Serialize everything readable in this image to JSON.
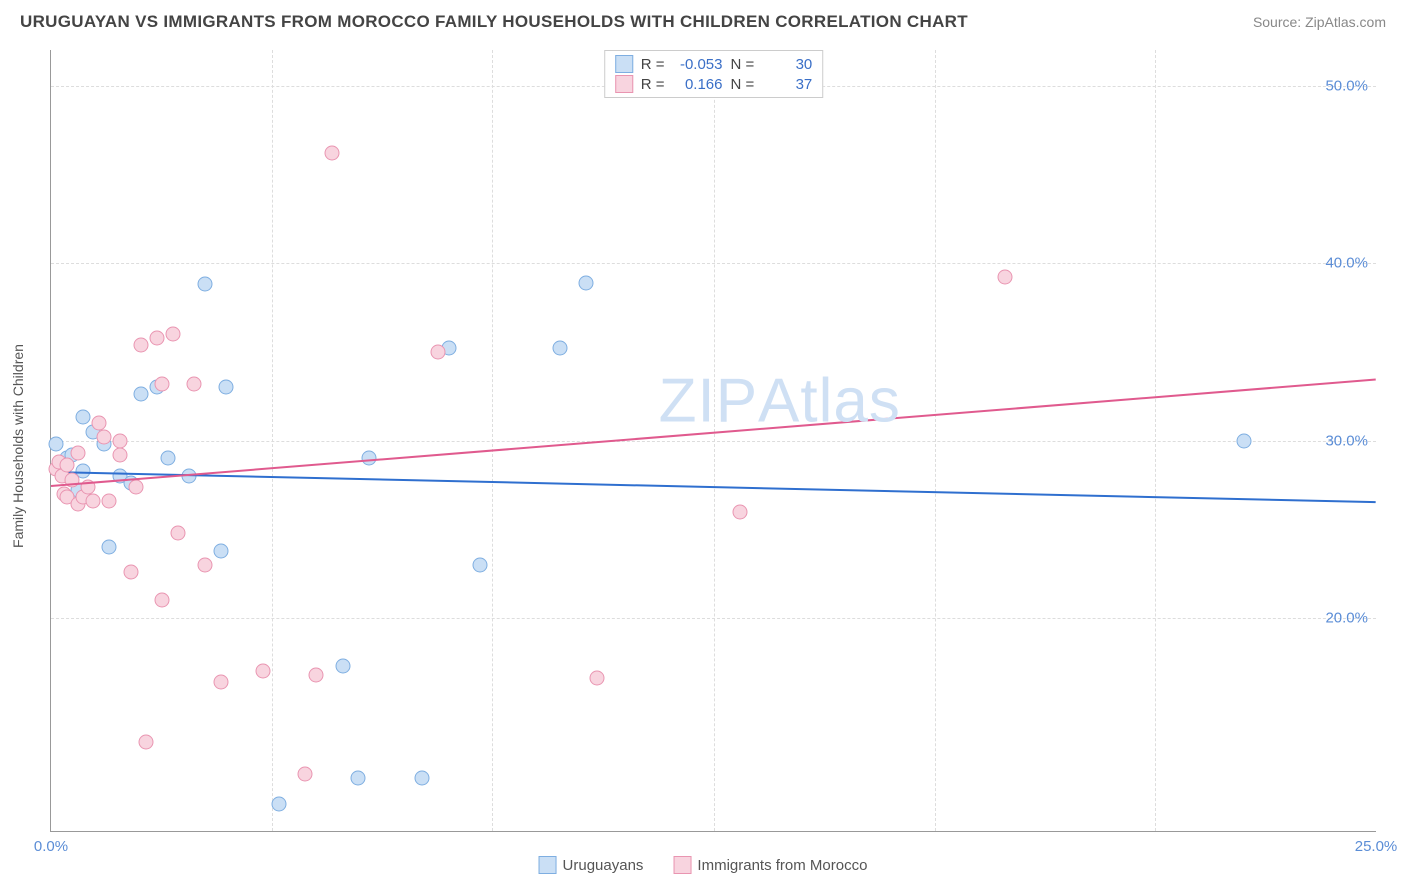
{
  "header": {
    "title": "URUGUAYAN VS IMMIGRANTS FROM MOROCCO FAMILY HOUSEHOLDS WITH CHILDREN CORRELATION CHART",
    "source": "Source: ZipAtlas.com"
  },
  "watermark": {
    "part1": "ZIP",
    "part2": "Atlas"
  },
  "chart": {
    "type": "scatter",
    "ylabel": "Family Households with Children",
    "xlim": [
      0,
      25
    ],
    "ylim": [
      8,
      52
    ],
    "y_ticks": [
      20,
      30,
      40,
      50
    ],
    "y_tick_labels": [
      "20.0%",
      "30.0%",
      "40.0%",
      "50.0%"
    ],
    "x_ticks": [
      0,
      25
    ],
    "x_tick_labels": [
      "0.0%",
      "25.0%"
    ],
    "x_minor_ticks": [
      4.17,
      8.33,
      12.5,
      16.67,
      20.83
    ],
    "grid_color": "#dddddd",
    "background_color": "#ffffff",
    "series": [
      {
        "name": "Uruguayans",
        "color_fill": "#cadff5",
        "color_stroke": "#7eaee1",
        "marker_size": 15,
        "r_value": "-0.053",
        "n_value": "30",
        "trend": {
          "y_at_xmin": 28.3,
          "y_at_xmax": 26.6,
          "color": "#2f6fcf",
          "width": 2
        },
        "points": [
          {
            "x": 0.1,
            "y": 29.8
          },
          {
            "x": 0.15,
            "y": 28.6
          },
          {
            "x": 0.2,
            "y": 28.8
          },
          {
            "x": 0.3,
            "y": 29.0
          },
          {
            "x": 0.4,
            "y": 29.2
          },
          {
            "x": 0.5,
            "y": 27.2
          },
          {
            "x": 0.6,
            "y": 31.3
          },
          {
            "x": 0.6,
            "y": 28.3
          },
          {
            "x": 0.8,
            "y": 30.5
          },
          {
            "x": 1.0,
            "y": 29.8
          },
          {
            "x": 1.1,
            "y": 24.0
          },
          {
            "x": 1.3,
            "y": 28.0
          },
          {
            "x": 1.5,
            "y": 27.6
          },
          {
            "x": 1.7,
            "y": 32.6
          },
          {
            "x": 2.0,
            "y": 33.0
          },
          {
            "x": 2.2,
            "y": 29.0
          },
          {
            "x": 2.6,
            "y": 28.0
          },
          {
            "x": 2.9,
            "y": 38.8
          },
          {
            "x": 3.2,
            "y": 23.8
          },
          {
            "x": 3.3,
            "y": 33.0
          },
          {
            "x": 4.3,
            "y": 9.5
          },
          {
            "x": 5.5,
            "y": 17.3
          },
          {
            "x": 5.8,
            "y": 11.0
          },
          {
            "x": 6.0,
            "y": 29.0
          },
          {
            "x": 7.0,
            "y": 11.0
          },
          {
            "x": 7.5,
            "y": 35.2
          },
          {
            "x": 8.1,
            "y": 23.0
          },
          {
            "x": 9.6,
            "y": 35.2
          },
          {
            "x": 10.1,
            "y": 38.9
          },
          {
            "x": 22.5,
            "y": 30.0
          }
        ]
      },
      {
        "name": "Immigrants from Morocco",
        "color_fill": "#f8d4df",
        "color_stroke": "#e995b1",
        "marker_size": 15,
        "r_value": "0.166",
        "n_value": "37",
        "trend": {
          "y_at_xmin": 27.5,
          "y_at_xmax": 33.5,
          "color": "#e05a8e",
          "width": 2
        },
        "points": [
          {
            "x": 0.1,
            "y": 28.4
          },
          {
            "x": 0.15,
            "y": 28.8
          },
          {
            "x": 0.2,
            "y": 28.0
          },
          {
            "x": 0.25,
            "y": 27.0
          },
          {
            "x": 0.3,
            "y": 28.6
          },
          {
            "x": 0.3,
            "y": 26.8
          },
          {
            "x": 0.4,
            "y": 27.8
          },
          {
            "x": 0.5,
            "y": 29.3
          },
          {
            "x": 0.5,
            "y": 26.4
          },
          {
            "x": 0.6,
            "y": 26.8
          },
          {
            "x": 0.7,
            "y": 27.4
          },
          {
            "x": 0.8,
            "y": 26.6
          },
          {
            "x": 0.9,
            "y": 31.0
          },
          {
            "x": 1.0,
            "y": 30.2
          },
          {
            "x": 1.1,
            "y": 26.6
          },
          {
            "x": 1.3,
            "y": 30.0
          },
          {
            "x": 1.3,
            "y": 29.2
          },
          {
            "x": 1.5,
            "y": 22.6
          },
          {
            "x": 1.6,
            "y": 27.4
          },
          {
            "x": 1.7,
            "y": 35.4
          },
          {
            "x": 1.8,
            "y": 13.0
          },
          {
            "x": 2.0,
            "y": 35.8
          },
          {
            "x": 2.1,
            "y": 33.2
          },
          {
            "x": 2.1,
            "y": 21.0
          },
          {
            "x": 2.3,
            "y": 36.0
          },
          {
            "x": 2.4,
            "y": 24.8
          },
          {
            "x": 2.7,
            "y": 33.2
          },
          {
            "x": 2.9,
            "y": 23.0
          },
          {
            "x": 3.2,
            "y": 16.4
          },
          {
            "x": 4.0,
            "y": 17.0
          },
          {
            "x": 4.8,
            "y": 11.2
          },
          {
            "x": 5.0,
            "y": 16.8
          },
          {
            "x": 5.3,
            "y": 46.2
          },
          {
            "x": 7.3,
            "y": 35.0
          },
          {
            "x": 10.3,
            "y": 16.6
          },
          {
            "x": 13.0,
            "y": 26.0
          },
          {
            "x": 18.0,
            "y": 39.2
          }
        ]
      }
    ]
  },
  "legend_top": {
    "r_label": "R =",
    "n_label": "N ="
  },
  "legend_bottom": {
    "items": [
      "Uruguayans",
      "Immigrants from Morocco"
    ]
  }
}
